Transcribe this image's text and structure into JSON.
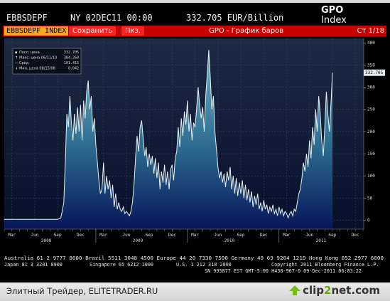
{
  "header": {
    "code": "EBBSDEPF",
    "date": "NY 02DEC11 00:00",
    "value": "332.705 EUR/Billion",
    "index_label": "Index",
    "index_code": "GPO"
  },
  "toolbar": {
    "ticker": "EBBSDEPF INDEX",
    "save": "Сохранить",
    "show": "Пкз.",
    "title": "GPO - График баров",
    "page": "Ст 1/18"
  },
  "legend": {
    "items": [
      {
        "label": "Посл. цена",
        "value": "332.705"
      },
      {
        "label": "Макс. цена 06/11/10",
        "value": "384.260"
      },
      {
        "label": "Сред.",
        "value": "101.415"
      },
      {
        "label": "Мин. цена 08/15/08",
        "value": "0.042"
      }
    ]
  },
  "current_label": "332.705",
  "footer": {
    "line1": "Australia 61 2 9777 8600 Brazil 5511 3048 4500 Europe 44 20 7330 7500 Germany 49 69 9204 1210 Hong Kong 852 2977 6000",
    "line2a": "Japan 81 3 3201 8900",
    "line2b": "Singapore 65 6212 1000",
    "line2c": "U.S. 1 212 318 2000",
    "line2d": "Copyright 2011 Bloomberg Finance L.P.",
    "line3": "SN 995877 EST  GMT-5:00 H438-967-0 09-Dec-2011 06:03:22",
    "credit": "Элитный Трейдер, ELITETRADER.RU",
    "brand_a": "clip",
    "brand_b": "2",
    "brand_c": "net.com"
  },
  "colors": {
    "fill_top": "#5fa3b8",
    "fill_bottom": "#0a1f58",
    "line": "#e6f2f5",
    "background": "#000000"
  },
  "chart_data": {
    "type": "area",
    "ylim": [
      -20,
      410
    ],
    "yticks": [
      0,
      50,
      100,
      150,
      200,
      250,
      300,
      350,
      400
    ],
    "xticks": [
      {
        "label": "Mar",
        "x": 1
      },
      {
        "label": "Jun",
        "x": 4
      },
      {
        "label": "Sep",
        "x": 7
      },
      {
        "label": "Dec",
        "x": 10
      },
      {
        "label": "Mar",
        "x": 13
      },
      {
        "label": "Jun",
        "x": 16
      },
      {
        "label": "Sep",
        "x": 19
      },
      {
        "label": "Dec",
        "x": 22
      },
      {
        "label": "Mar",
        "x": 25
      },
      {
        "label": "Jun",
        "x": 28
      },
      {
        "label": "Sep",
        "x": 31
      },
      {
        "label": "Dec",
        "x": 34
      },
      {
        "label": "Mar",
        "x": 37
      },
      {
        "label": "Jun",
        "x": 40
      },
      {
        "label": "Sep",
        "x": 43
      },
      {
        "label": "Dec",
        "x": 46
      }
    ],
    "year_labels": [
      {
        "label": "2008",
        "x": 5.5
      },
      {
        "label": "2009",
        "x": 17.5
      },
      {
        "label": "2010",
        "x": 29.5
      },
      {
        "label": "2011",
        "x": 41.5
      }
    ],
    "xlim": [
      0,
      47.1
    ],
    "points": [
      [
        0,
        2
      ],
      [
        1,
        2
      ],
      [
        2,
        2
      ],
      [
        3,
        2
      ],
      [
        4,
        2
      ],
      [
        5,
        2
      ],
      [
        6,
        2
      ],
      [
        7,
        2
      ],
      [
        7.4,
        5
      ],
      [
        7.6,
        20
      ],
      [
        7.8,
        40
      ],
      [
        8.0,
        130
      ],
      [
        8.2,
        240
      ],
      [
        8.4,
        210
      ],
      [
        8.6,
        280
      ],
      [
        8.8,
        220
      ],
      [
        9.0,
        180
      ],
      [
        9.2,
        240
      ],
      [
        9.4,
        195
      ],
      [
        9.6,
        255
      ],
      [
        9.8,
        200
      ],
      [
        10.0,
        260
      ],
      [
        10.2,
        180
      ],
      [
        10.4,
        270
      ],
      [
        10.6,
        230
      ],
      [
        10.8,
        290
      ],
      [
        11.0,
        315
      ],
      [
        11.2,
        250
      ],
      [
        11.4,
        280
      ],
      [
        11.6,
        200
      ],
      [
        11.8,
        230
      ],
      [
        12.0,
        170
      ],
      [
        12.2,
        130
      ],
      [
        12.4,
        90
      ],
      [
        12.6,
        60
      ],
      [
        12.8,
        70
      ],
      [
        13.0,
        130
      ],
      [
        13.2,
        60
      ],
      [
        13.4,
        100
      ],
      [
        13.6,
        70
      ],
      [
        13.8,
        90
      ],
      [
        14.0,
        50
      ],
      [
        14.2,
        80
      ],
      [
        14.4,
        30
      ],
      [
        14.6,
        60
      ],
      [
        14.8,
        25
      ],
      [
        15.0,
        40
      ],
      [
        15.2,
        25
      ],
      [
        15.4,
        20
      ],
      [
        15.6,
        30
      ],
      [
        15.8,
        15
      ],
      [
        16.0,
        20
      ],
      [
        16.2,
        15
      ],
      [
        16.4,
        10
      ],
      [
        16.6,
        20
      ],
      [
        16.8,
        40
      ],
      [
        17.0,
        80
      ],
      [
        17.2,
        140
      ],
      [
        17.4,
        190
      ],
      [
        17.6,
        155
      ],
      [
        17.8,
        210
      ],
      [
        18.0,
        225
      ],
      [
        18.2,
        185
      ],
      [
        18.4,
        145
      ],
      [
        18.6,
        165
      ],
      [
        18.8,
        120
      ],
      [
        19.0,
        150
      ],
      [
        19.2,
        125
      ],
      [
        19.4,
        145
      ],
      [
        19.6,
        105
      ],
      [
        19.8,
        140
      ],
      [
        20.0,
        95
      ],
      [
        20.2,
        130
      ],
      [
        20.4,
        70
      ],
      [
        20.6,
        110
      ],
      [
        20.8,
        85
      ],
      [
        21.0,
        125
      ],
      [
        21.2,
        80
      ],
      [
        21.4,
        110
      ],
      [
        21.6,
        70
      ],
      [
        21.8,
        115
      ],
      [
        22.0,
        125
      ],
      [
        22.2,
        90
      ],
      [
        22.4,
        140
      ],
      [
        22.6,
        155
      ],
      [
        22.8,
        210
      ],
      [
        23.0,
        165
      ],
      [
        23.2,
        230
      ],
      [
        23.4,
        190
      ],
      [
        23.6,
        245
      ],
      [
        23.8,
        215
      ],
      [
        24.0,
        270
      ],
      [
        24.2,
        200
      ],
      [
        24.4,
        240
      ],
      [
        24.6,
        180
      ],
      [
        24.8,
        220
      ],
      [
        25.0,
        210
      ],
      [
        25.2,
        250
      ],
      [
        25.4,
        300
      ],
      [
        25.6,
        260
      ],
      [
        25.8,
        230
      ],
      [
        26.0,
        255
      ],
      [
        26.2,
        200
      ],
      [
        26.4,
        280
      ],
      [
        26.6,
        330
      ],
      [
        26.8,
        384
      ],
      [
        27.0,
        320
      ],
      [
        27.2,
        250
      ],
      [
        27.4,
        280
      ],
      [
        27.6,
        200
      ],
      [
        27.8,
        160
      ],
      [
        28.0,
        120
      ],
      [
        28.2,
        95
      ],
      [
        28.4,
        110
      ],
      [
        28.6,
        85
      ],
      [
        28.8,
        105
      ],
      [
        29.0,
        75
      ],
      [
        29.2,
        110
      ],
      [
        29.4,
        90
      ],
      [
        29.6,
        120
      ],
      [
        29.8,
        70
      ],
      [
        30.0,
        100
      ],
      [
        30.2,
        60
      ],
      [
        30.4,
        95
      ],
      [
        30.6,
        55
      ],
      [
        30.8,
        85
      ],
      [
        31.0,
        60
      ],
      [
        31.2,
        90
      ],
      [
        31.4,
        50
      ],
      [
        31.6,
        80
      ],
      [
        31.8,
        45
      ],
      [
        32.0,
        70
      ],
      [
        32.2,
        40
      ],
      [
        32.4,
        65
      ],
      [
        32.6,
        30
      ],
      [
        32.8,
        55
      ],
      [
        33.0,
        35
      ],
      [
        33.2,
        60
      ],
      [
        33.4,
        25
      ],
      [
        33.6,
        40
      ],
      [
        33.8,
        20
      ],
      [
        34.0,
        45
      ],
      [
        34.2,
        25
      ],
      [
        34.4,
        35
      ],
      [
        34.6,
        15
      ],
      [
        34.8,
        30
      ],
      [
        35.0,
        20
      ],
      [
        35.2,
        35
      ],
      [
        35.4,
        15
      ],
      [
        35.6,
        25
      ],
      [
        35.8,
        10
      ],
      [
        36.0,
        30
      ],
      [
        36.2,
        15
      ],
      [
        36.4,
        25
      ],
      [
        36.6,
        10
      ],
      [
        36.8,
        20
      ],
      [
        37.0,
        15
      ],
      [
        37.2,
        5
      ],
      [
        37.4,
        15
      ],
      [
        37.6,
        20
      ],
      [
        37.8,
        10
      ],
      [
        38.0,
        25
      ],
      [
        38.2,
        20
      ],
      [
        38.4,
        40
      ],
      [
        38.6,
        60
      ],
      [
        38.8,
        70
      ],
      [
        39.0,
        95
      ],
      [
        39.2,
        130
      ],
      [
        39.4,
        110
      ],
      [
        39.6,
        150
      ],
      [
        39.8,
        120
      ],
      [
        40.0,
        180
      ],
      [
        40.2,
        140
      ],
      [
        40.4,
        210
      ],
      [
        40.6,
        170
      ],
      [
        40.8,
        250
      ],
      [
        41.0,
        200
      ],
      [
        41.2,
        280
      ],
      [
        41.4,
        240
      ],
      [
        41.6,
        180
      ],
      [
        41.8,
        145
      ],
      [
        42.0,
        210
      ],
      [
        42.2,
        290
      ],
      [
        42.4,
        240
      ],
      [
        42.6,
        200
      ],
      [
        42.8,
        260
      ],
      [
        43.0,
        332.7
      ]
    ],
    "last_value": 332.705,
    "max_value": 384.26,
    "average": 101.415,
    "min_value": 0.042
  }
}
